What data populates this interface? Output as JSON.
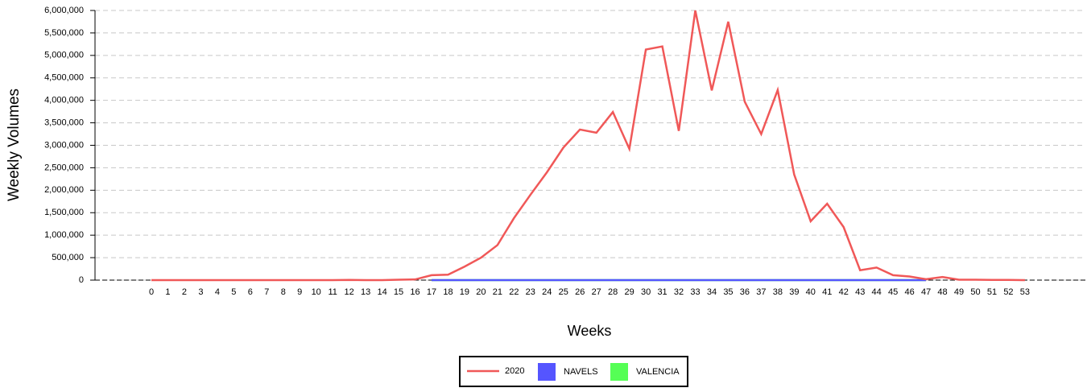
{
  "chart_data": {
    "type": "line",
    "x_label": "Weeks",
    "y_label": "Weekly Volumes",
    "categories": [
      "0",
      "1",
      "2",
      "3",
      "4",
      "5",
      "6",
      "7",
      "8",
      "9",
      "10",
      "11",
      "12",
      "13",
      "14",
      "15",
      "16",
      "17",
      "18",
      "19",
      "20",
      "21",
      "22",
      "23",
      "24",
      "25",
      "26",
      "27",
      "28",
      "29",
      "30",
      "31",
      "32",
      "33",
      "34",
      "35",
      "36",
      "37",
      "38",
      "39",
      "40",
      "41",
      "42",
      "43",
      "44",
      "45",
      "46",
      "47",
      "48",
      "49",
      "50",
      "51",
      "52",
      "53"
    ],
    "series": [
      {
        "name": "2020",
        "color": "#f05858",
        "legend_marker": "line",
        "values": [
          0,
          0,
          0,
          0,
          0,
          0,
          0,
          0,
          0,
          0,
          0,
          0,
          5000,
          0,
          0,
          10000,
          15000,
          110000,
          120000,
          300000,
          500000,
          780000,
          1380000,
          1900000,
          2400000,
          2950000,
          3350000,
          3280000,
          3740000,
          2920000,
          5130000,
          5200000,
          3320000,
          6000000,
          4220000,
          5750000,
          3970000,
          3250000,
          4230000,
          2350000,
          1310000,
          1700000,
          1180000,
          220000,
          280000,
          110000,
          80000,
          20000,
          70000,
          10000,
          10000,
          5000,
          5000,
          0
        ]
      },
      {
        "name": "NAVELS",
        "color": "#5555ff",
        "legend_marker": "square",
        "values": [
          null,
          null,
          null,
          null,
          null,
          null,
          null,
          null,
          null,
          null,
          null,
          null,
          null,
          null,
          null,
          null,
          null,
          0,
          0,
          0,
          0,
          0,
          0,
          0,
          0,
          0,
          0,
          0,
          0,
          0,
          0,
          0,
          0,
          0,
          0,
          0,
          0,
          0,
          0,
          0,
          0,
          0,
          0,
          0,
          0,
          0,
          0,
          0,
          null,
          null,
          null,
          null,
          null,
          null
        ]
      },
      {
        "name": "VALENCIA",
        "color": "#55ff55",
        "legend_marker": "square",
        "values": [
          null,
          null,
          null,
          null,
          null,
          null,
          null,
          null,
          null,
          null,
          null,
          null,
          null,
          null,
          null,
          null,
          null,
          0,
          0,
          0,
          0,
          0,
          0,
          0,
          0,
          0,
          0,
          0,
          0,
          0,
          0,
          0,
          0,
          0,
          0,
          0,
          0,
          0,
          0,
          0,
          0,
          0,
          0,
          0,
          0,
          0,
          0,
          0,
          null,
          null,
          null,
          null,
          null,
          null
        ]
      }
    ],
    "ylim": [
      0,
      6000000
    ],
    "yticks": [
      0,
      {
        "value": 500000,
        "label": "500,000"
      },
      {
        "value": 1000000,
        "label": "1,000,000"
      },
      {
        "value": 1500000,
        "label": "1,500,000"
      },
      {
        "value": 2000000,
        "label": "2,000,000"
      },
      {
        "value": 2500000,
        "label": "2,500,000"
      },
      {
        "value": 3000000,
        "label": "3,000,000"
      },
      {
        "value": 3500000,
        "label": "3,500,000"
      },
      {
        "value": 4000000,
        "label": "4,000,000"
      },
      {
        "value": 4500000,
        "label": "4,500,000"
      },
      {
        "value": 5000000,
        "label": "5,000,000"
      },
      {
        "value": 5500000,
        "label": "5,500,000"
      },
      {
        "value": 6000000,
        "label": "6,000,000"
      }
    ],
    "grid": true,
    "legend_position": "bottom"
  }
}
